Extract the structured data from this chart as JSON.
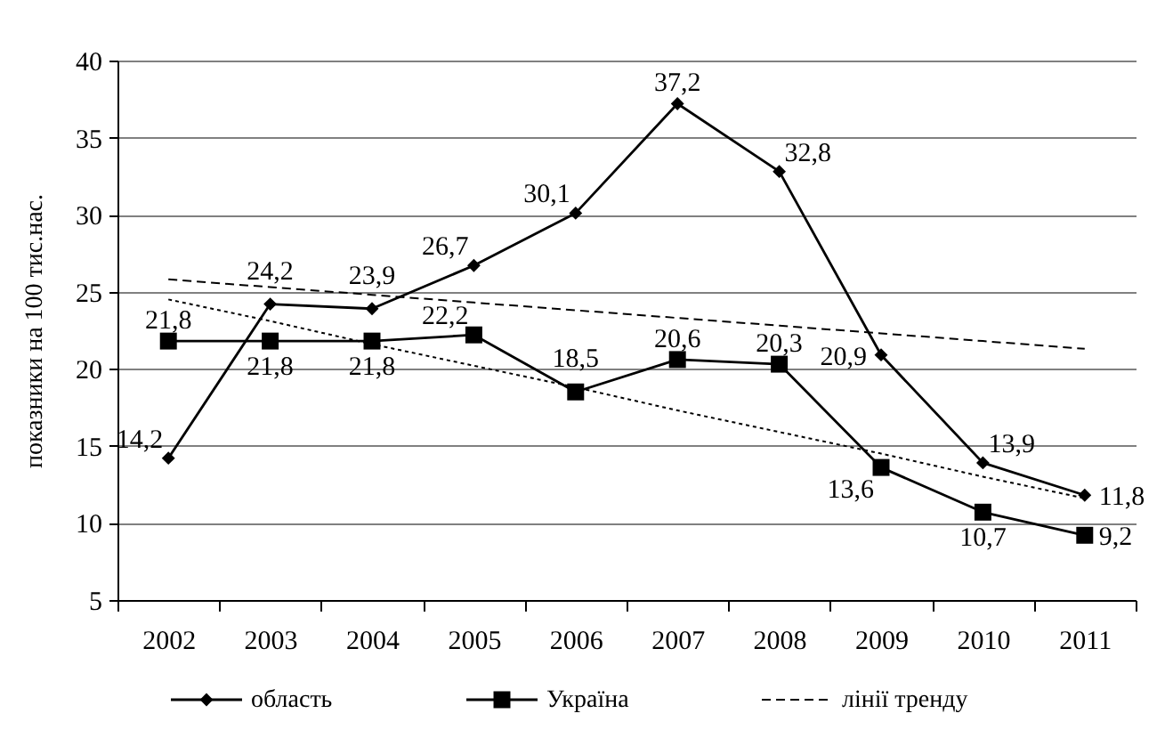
{
  "chart_data": {
    "type": "line",
    "ylabel": "показники на 100 тис.нас.",
    "categories": [
      "2002",
      "2003",
      "2004",
      "2005",
      "2006",
      "2007",
      "2008",
      "2009",
      "2010",
      "2011"
    ],
    "ylim": [
      5,
      40
    ],
    "yticks": [
      5,
      10,
      15,
      20,
      25,
      30,
      35,
      40
    ],
    "grid": "y",
    "legend": "bottom",
    "series": [
      {
        "name": "область",
        "color": "#000000",
        "marker": "diamond",
        "values": [
          14.2,
          24.2,
          23.9,
          26.7,
          30.1,
          37.2,
          32.8,
          20.9,
          13.9,
          11.8
        ],
        "value_labels": [
          "14,2",
          "24,2",
          "23,9",
          "26,7",
          "30,1",
          "37,2",
          "32,8",
          "20,9",
          "13,9",
          "11,8"
        ]
      },
      {
        "name": "Україна",
        "color": "#000000",
        "marker": "square",
        "values": [
          21.8,
          21.8,
          21.8,
          22.2,
          18.5,
          20.6,
          20.3,
          13.6,
          10.7,
          9.2
        ],
        "value_labels": [
          "21,8",
          "21,8",
          "21,8",
          "22,2",
          "18,5",
          "20,6",
          "20,3",
          "13,6",
          "10,7",
          "9,2"
        ]
      },
      {
        "name": "лінії тренду",
        "color": "#000000",
        "values": [
          25.8,
          25.3,
          24.8,
          24.3,
          23.8,
          23.3,
          22.8,
          22.3,
          21.8,
          21.3
        ],
        "line_style": "dashed",
        "marker": "none"
      },
      {
        "color": "#000000",
        "values": [
          24.5,
          23.1,
          21.6,
          20.2,
          18.8,
          17.3,
          15.9,
          14.5,
          13.0,
          11.6
        ],
        "line_style": "dotted",
        "marker": "none"
      }
    ]
  }
}
